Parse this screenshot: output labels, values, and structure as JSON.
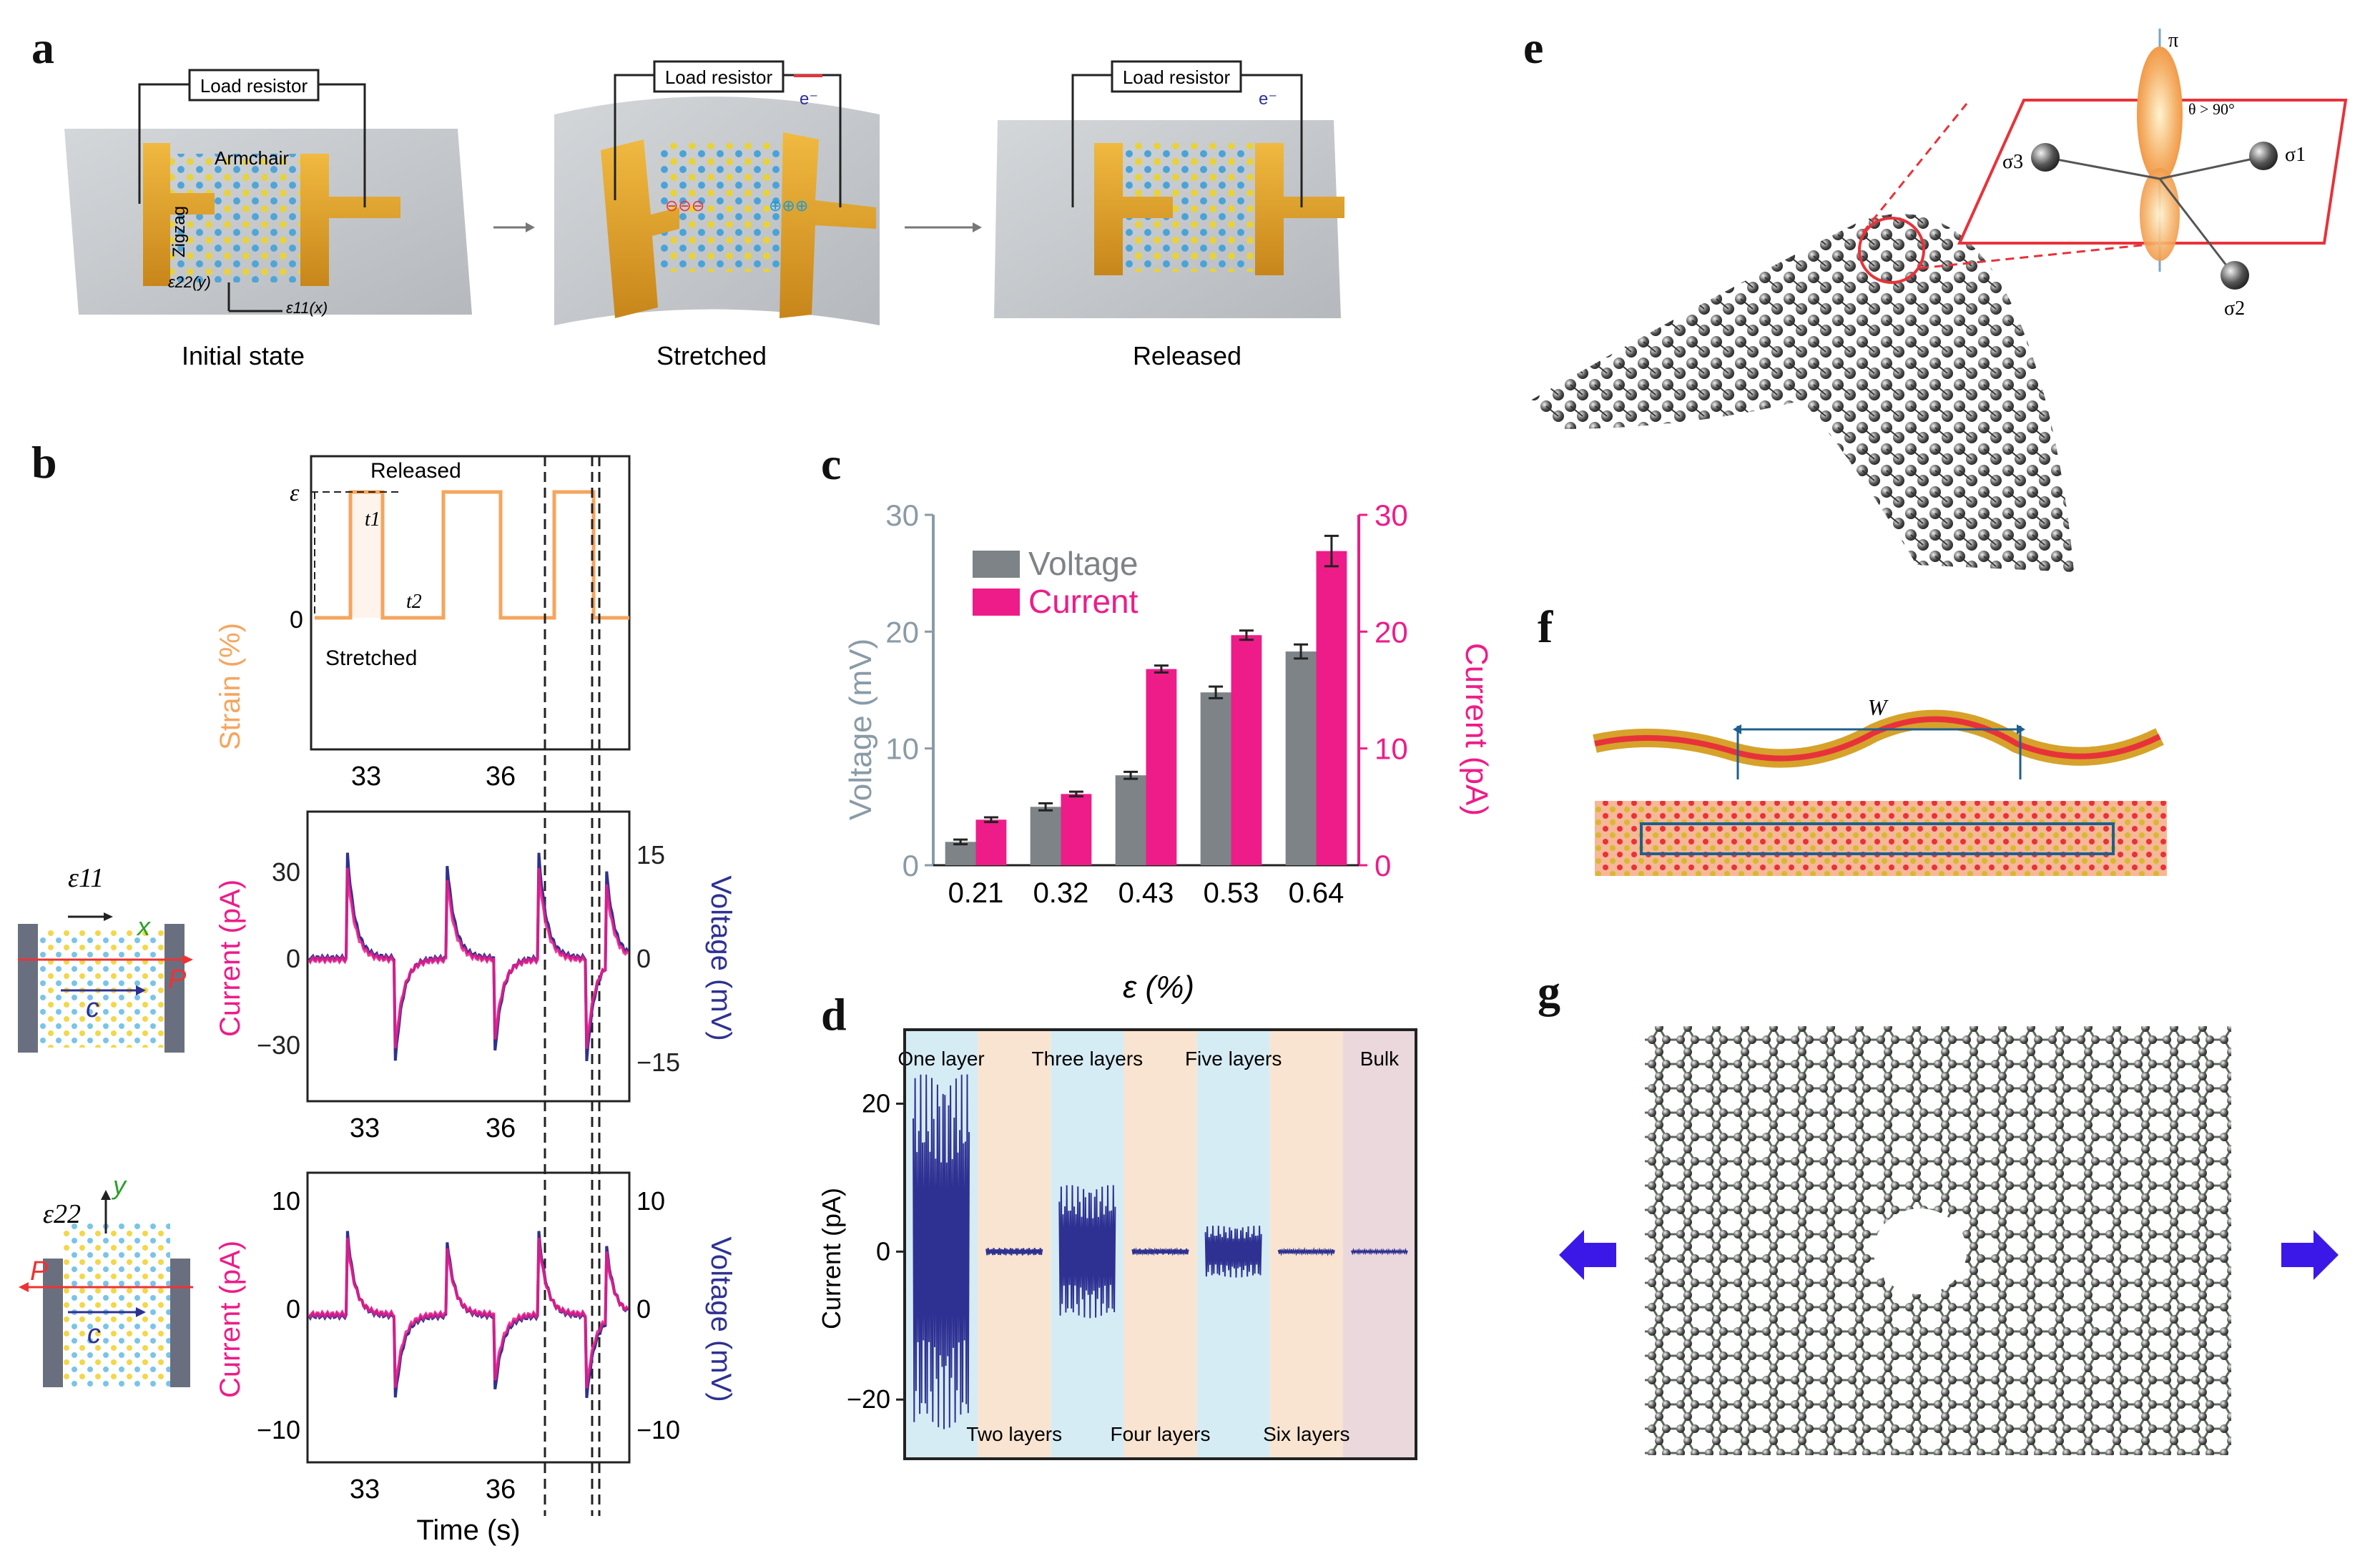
{
  "labels": {
    "a": "a",
    "b": "b",
    "c": "c",
    "d": "d",
    "e": "e",
    "f": "f",
    "g": "g"
  },
  "panel_a": {
    "load_resistor": "Load resistor",
    "states": [
      "Initial state",
      "Stretched",
      "Released"
    ],
    "armchair": "Armchair",
    "zigzag": "Zigzag",
    "eps22y": "ε22(y)",
    "eps11x": "ε11(x)",
    "electron": "e⁻"
  },
  "panel_b": {
    "strain_axis": "Strain (%)",
    "eps": "ε",
    "zero": "0",
    "released": "Released",
    "stretched": "Stretched",
    "t1": "t1",
    "t2": "t2",
    "time_ticks": [
      "33",
      "36"
    ],
    "current_axis": "Current (pA)",
    "voltage_axis": "Voltage (mV)",
    "mid_current_ticks": [
      "30",
      "0",
      "−30"
    ],
    "mid_voltage_ticks": [
      "15",
      "0",
      "−15"
    ],
    "bot_current_ticks": [
      "10",
      "0",
      "−10"
    ],
    "bot_voltage_ticks": [
      "10",
      "0",
      "−10"
    ],
    "time_label": "Time (s)",
    "inset_top": {
      "eps": "ε11",
      "dir": "x",
      "pol": "P",
      "c": "c"
    },
    "inset_bot": {
      "eps": "ε22",
      "dir": "y",
      "pol": "P",
      "c": "c"
    }
  },
  "chart_data": [
    {
      "type": "bar",
      "panel": "c",
      "title": "",
      "categories": [
        "0.21",
        "0.32",
        "0.43",
        "0.53",
        "0.64"
      ],
      "series": [
        {
          "name": "Voltage",
          "values": [
            2.0,
            5.0,
            7.7,
            14.8,
            18.3
          ],
          "errors": [
            0.2,
            0.3,
            0.3,
            0.5,
            0.6
          ],
          "color": "#7d8387"
        },
        {
          "name": "Current",
          "values": [
            3.9,
            6.1,
            16.8,
            19.7,
            26.9
          ],
          "errors": [
            0.2,
            0.2,
            0.3,
            0.4,
            1.3
          ],
          "color": "#ee1c89"
        }
      ],
      "xlabel": "ε (%)",
      "ylabel_left": "Voltage (mV)",
      "ylabel_right": "Current (pA)",
      "ylim": [
        0,
        30
      ],
      "yticks": [
        "0",
        "10",
        "20",
        "30"
      ]
    },
    {
      "type": "line",
      "panel": "d",
      "ylabel": "Current (pA)",
      "ylim": [
        -28,
        30
      ],
      "yticks": [
        "20",
        "0",
        "−20"
      ],
      "regions": [
        {
          "name": "One layer",
          "amplitude": 24
        },
        {
          "name": "Two layers",
          "amplitude": 0.5
        },
        {
          "name": "Three layers",
          "amplitude": 9
        },
        {
          "name": "Four layers",
          "amplitude": 0.4
        },
        {
          "name": "Five layers",
          "amplitude": 3.5
        },
        {
          "name": "Six layers",
          "amplitude": 0.3
        },
        {
          "name": "Bulk",
          "amplitude": 0.2
        }
      ]
    }
  ],
  "panel_e": {
    "pi": "π",
    "theta": "θ > 90°",
    "s1": "σ1",
    "s2": "σ2",
    "s3": "σ3"
  },
  "panel_f": {
    "w": "W"
  },
  "colors": {
    "current": "#ee1c89",
    "voltage": "#2e3192",
    "strain": "#f6a55e",
    "gold": "#e2a22c",
    "substrate": "#c9ccd0"
  }
}
